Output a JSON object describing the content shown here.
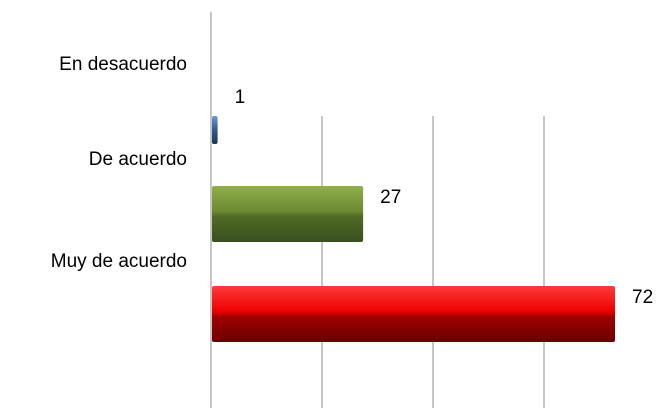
{
  "chart_data": {
    "type": "bar",
    "orientation": "horizontal",
    "categories": [
      "En desacuerdo",
      "De acuerdo",
      "Muy de acuerdo"
    ],
    "series": [
      {
        "values": [
          1,
          27,
          72
        ],
        "colors": [
          "#2f5a8c",
          "#5a7a2a",
          "#e00000"
        ]
      }
    ],
    "xlim": [
      0,
      72
    ],
    "grid": true,
    "legend": "none",
    "data_labels": true
  }
}
